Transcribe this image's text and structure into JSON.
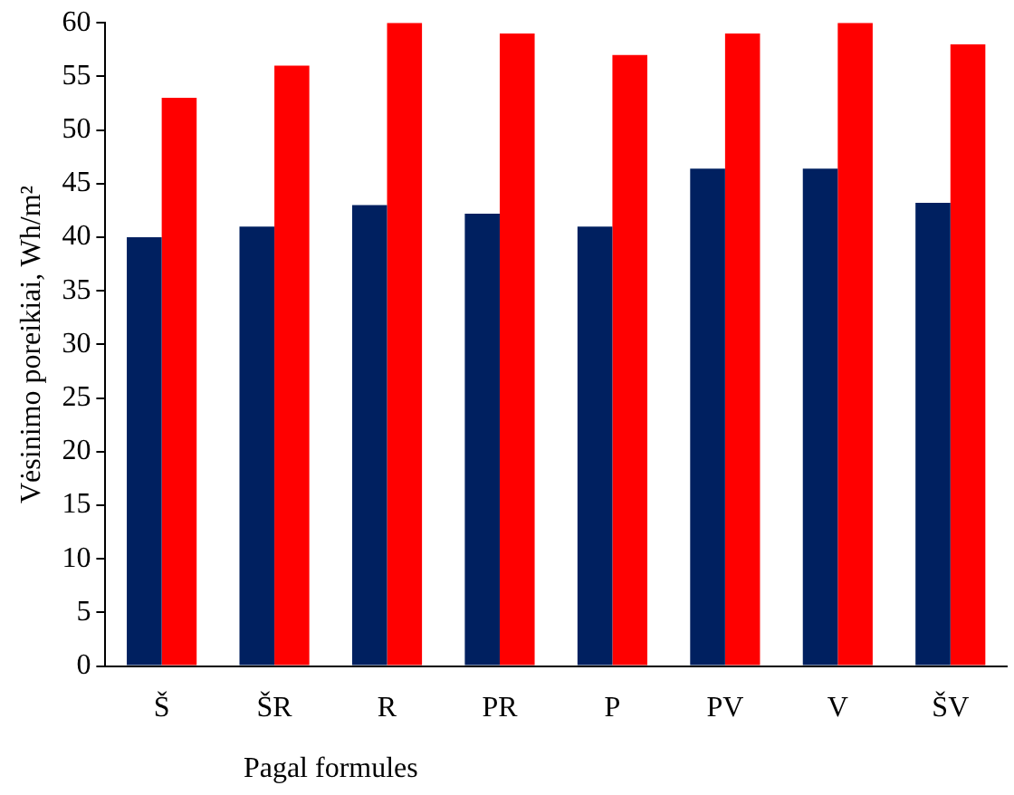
{
  "chart_data": {
    "type": "bar",
    "ylabel": "Vėsinimo poreikiai, Wh/m²",
    "categories": [
      "Š",
      "ŠR",
      "R",
      "PR",
      "P",
      "PV",
      "V",
      "ŠV"
    ],
    "series": [
      {
        "color": "#002060",
        "values": [
          40,
          41,
          43,
          42.2,
          41,
          46.4,
          46.4,
          43.2
        ]
      },
      {
        "color": "#ff0000",
        "values": [
          53,
          56,
          60,
          59,
          57,
          59,
          60,
          58
        ]
      }
    ],
    "ylim": [
      0,
      60
    ],
    "yticks": [
      0,
      5,
      10,
      15,
      20,
      25,
      30,
      35,
      40,
      45,
      50,
      55,
      60
    ],
    "grid": false,
    "legend": false,
    "annotations": [
      "Pagal formules"
    ]
  }
}
